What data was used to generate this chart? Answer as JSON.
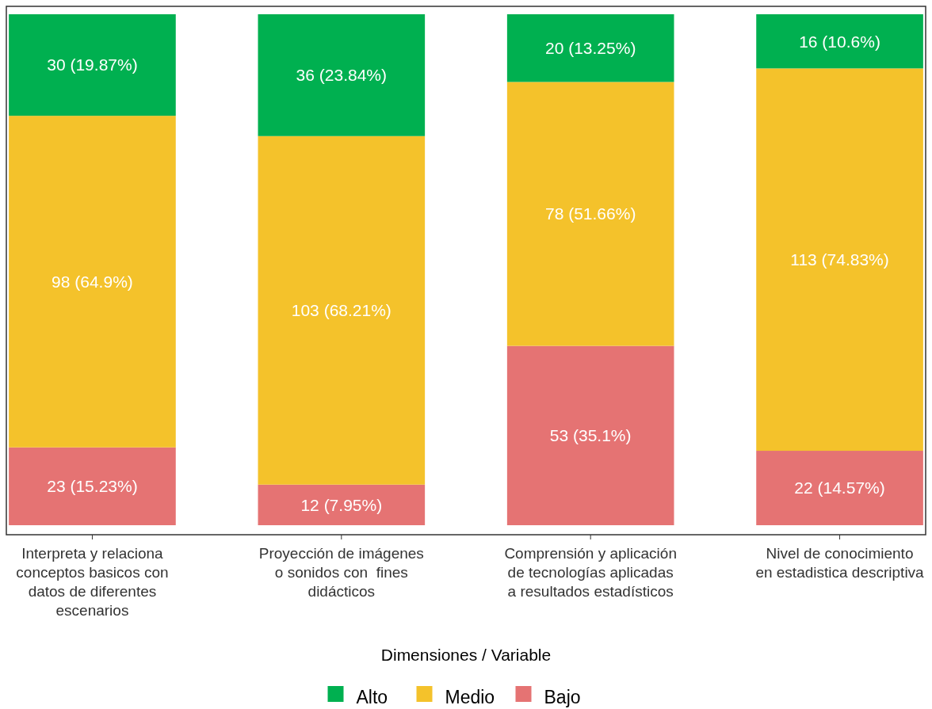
{
  "chart_data": {
    "type": "bar",
    "stacked": true,
    "xlabel": "Dimensiones / Variable",
    "legend": "bottom",
    "grid": false,
    "categories": [
      "Interpreta y relaciona\nconceptos basicos con\ndatos de diferentes\nescenarios",
      "Proyección de imágenes\no sonidos con  fines\ndidácticos",
      "Comprensión y aplicación\nde tecnologías aplicadas\na resultados estadísticos",
      "Nivel de conocimiento\nen estadistica descriptiva"
    ],
    "series": [
      {
        "name": "Bajo",
        "color": "#e57373",
        "values": [
          23,
          12,
          53,
          22
        ],
        "value_labels": [
          "23 (15.23%)",
          "12 (7.95%)",
          "53 (35.1%)",
          "22 (14.57%)"
        ]
      },
      {
        "name": "Medio",
        "color": "#f4c22b",
        "values": [
          98,
          103,
          78,
          113
        ],
        "value_labels": [
          "98 (64.9%)",
          "103 (68.21%)",
          "78 (51.66%)",
          "113 (74.83%)"
        ]
      },
      {
        "name": "Alto",
        "color": "#00b050",
        "values": [
          30,
          36,
          20,
          16
        ],
        "value_labels": [
          "30 (19.87%)",
          "36 (23.84%)",
          "20 (13.25%)",
          "16 (10.6%)"
        ]
      }
    ]
  }
}
